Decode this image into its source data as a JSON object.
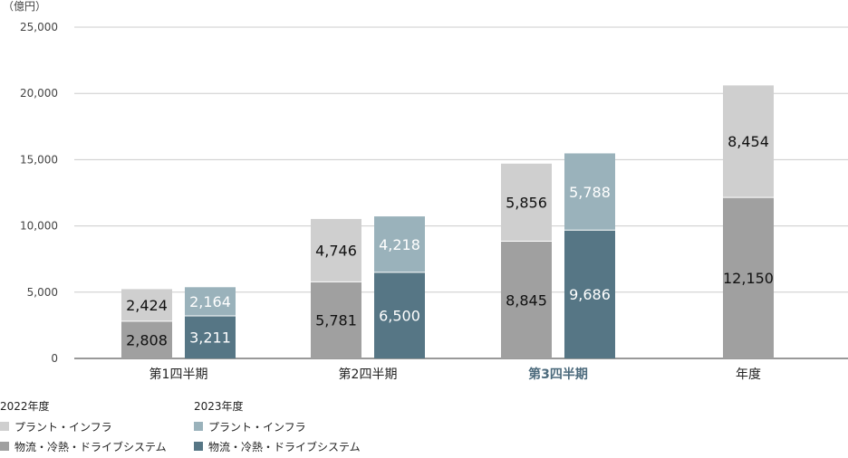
{
  "chart_data": {
    "type": "bar",
    "stacked": true,
    "unit_label": "（億円）",
    "ylim": [
      0,
      25000
    ],
    "yticks": [
      0,
      5000,
      10000,
      15000,
      20000,
      25000
    ],
    "ytick_labels": [
      "0",
      "5,000",
      "10,000",
      "15,000",
      "20,000",
      "25,000"
    ],
    "grid": true,
    "categories": [
      "第1四半期",
      "第2四半期",
      "第3四半期",
      "年度"
    ],
    "highlight_category": "第3四半期",
    "highlight_color": "#4d6b7d",
    "groups": [
      {
        "year": "2022年度",
        "series": [
          {
            "name": "物流・冷熱・ドライブシステム",
            "color": "#a0a0a0",
            "values": [
              2808,
              5781,
              8845,
              12150
            ],
            "labels": [
              "2,808",
              "5,781",
              "8,845",
              "12,150"
            ]
          },
          {
            "name": "プラント・インフラ",
            "color": "#cfcfcf",
            "values": [
              2424,
              4746,
              5856,
              8454
            ],
            "labels": [
              "2,424",
              "4,746",
              "5,856",
              "8,454"
            ]
          }
        ]
      },
      {
        "year": "2023年度",
        "series": [
          {
            "name": "物流・冷熱・ドライブシステム",
            "color": "#567685",
            "values": [
              3211,
              6500,
              9686,
              null
            ],
            "labels": [
              "3,211",
              "6,500",
              "9,686",
              null
            ]
          },
          {
            "name": "プラント・インフラ",
            "color": "#9ab2bb",
            "values": [
              2164,
              4218,
              5788,
              null
            ],
            "labels": [
              "2,164",
              "4,218",
              "5,788",
              null
            ]
          }
        ]
      }
    ]
  },
  "legend": {
    "groups": [
      {
        "title": "2022年度",
        "items": [
          {
            "label": "プラント・インフラ",
            "color": "#cfcfcf"
          },
          {
            "label": "物流・冷熱・ドライブシステム",
            "color": "#a0a0a0"
          }
        ]
      },
      {
        "title": "2023年度",
        "items": [
          {
            "label": "プラント・インフラ",
            "color": "#9ab2bb"
          },
          {
            "label": "物流・冷熱・ドライブシステム",
            "color": "#567685"
          }
        ]
      }
    ]
  }
}
